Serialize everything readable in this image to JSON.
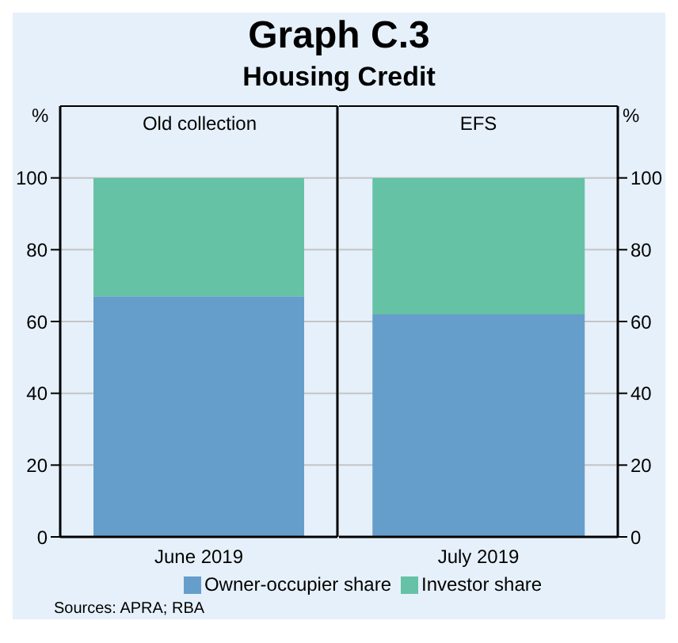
{
  "chart_data": [
    {
      "type": "bar",
      "title": "Graph C.3",
      "subtitle": "Housing Credit",
      "ylabel": "%",
      "categories": [
        "June 2019"
      ],
      "series": [
        {
          "name": "Owner-occupier share",
          "color": "#669ecb",
          "values": [
            67
          ]
        },
        {
          "name": "Investor share",
          "color": "#66c2a5",
          "values": [
            33
          ]
        }
      ],
      "stacked": true,
      "ylim": [
        0,
        120
      ],
      "yticks": [
        0,
        20,
        40,
        60,
        80,
        100
      ],
      "grid": "y",
      "legend": "bottom",
      "annotations": [
        "Old collection",
        "Sources: APRA; RBA"
      ]
    },
    {
      "type": "bar",
      "y2label": "%",
      "categories": [
        "July 2019"
      ],
      "series": [
        {
          "color": "#669ecb",
          "values": [
            62
          ],
          "axis": "y2"
        },
        {
          "color": "#66c2a5",
          "values": [
            38
          ],
          "axis": "y2"
        }
      ],
      "stacked": true,
      "y2lim": [
        0,
        120
      ],
      "y2ticks": [
        0,
        20,
        40,
        60,
        80,
        100
      ],
      "grid": "y",
      "annotations": [
        "EFS"
      ]
    }
  ]
}
